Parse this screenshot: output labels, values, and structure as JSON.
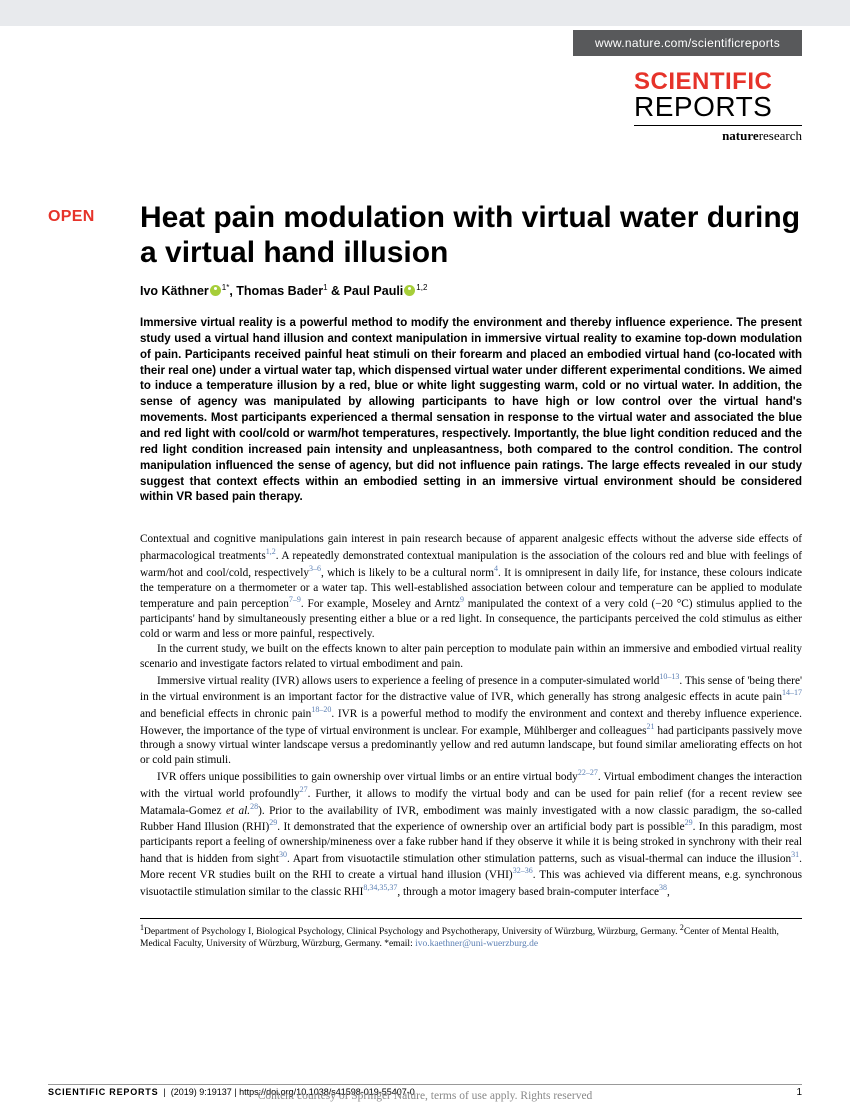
{
  "header": {
    "url": "www.nature.com/scientificreports",
    "logo_line1": "SCIENTIFIC",
    "logo_line2": "REPORTS",
    "logo_nature_bold": "nature",
    "logo_nature_rest": "research",
    "open_badge": "OPEN"
  },
  "article": {
    "title": "Heat pain modulation with virtual water during a virtual hand illusion",
    "authors_html": "Ivo Käthner|ORCID|<sup>1*</sup>, Thomas Bader<sup>1</sup> & Paul Pauli|ORCID|<sup>1,2</sup>",
    "abstract": "Immersive virtual reality is a powerful method to modify the environment and thereby influence experience. The present study used a virtual hand illusion and context manipulation in immersive virtual reality to examine top-down modulation of pain. Participants received painful heat stimuli on their forearm and placed an embodied virtual hand (co-located with their real one) under a virtual water tap, which dispensed virtual water under different experimental conditions. We aimed to induce a temperature illusion by a red, blue or white light suggesting warm, cold or no virtual water. In addition, the sense of agency was manipulated by allowing participants to have high or low control over the virtual hand's movements. Most participants experienced a thermal sensation in response to the virtual water and associated the blue and red light with cool/cold or warm/hot temperatures, respectively. Importantly, the blue light condition reduced and the red light condition increased pain intensity and unpleasantness, both compared to the control condition. The control manipulation influenced the sense of agency, but did not influence pain ratings. The large effects revealed in our study suggest that context effects within an embodied setting in an immersive virtual environment should be considered within VR based pain therapy."
  },
  "body": {
    "p1_a": "Contextual and cognitive manipulations gain interest in pain research because of apparent analgesic effects without the adverse side effects of pharmacological treatments",
    "p1_b": ". A repeatedly demonstrated contextual manipulation is the association of the colours red and blue with feelings of warm/hot and cool/cold, respectively",
    "p1_c": ", which is likely to be a cultural norm",
    "p1_d": ". It is omnipresent in daily life, for instance, these colours indicate the temperature on a thermometer or a water tap. This well-established association between colour and temperature can be applied to modulate temperature and pain perception",
    "p1_e": ". For example, Moseley and Arntz",
    "p1_f": " manipulated the context of a very cold (−20 °C) stimulus applied to the participants' hand by simultaneously presenting either a blue or a red light. In consequence, the participants perceived the cold stimulus as either cold or warm and less or more painful, respectively.",
    "p2": "In the current study, we built on the effects known to alter pain perception to modulate pain within an immersive and embodied virtual reality scenario and investigate factors related to virtual embodiment and pain.",
    "p3_a": "Immersive virtual reality (IVR) allows users to experience a feeling of presence in a computer-simulated world",
    "p3_b": ". This sense of 'being there' in the virtual environment is an important factor for the distractive value of IVR, which generally has strong analgesic effects in acute pain",
    "p3_c": " and beneficial effects in chronic pain",
    "p3_d": ". IVR is a powerful method to modify the environment and context and thereby influence experience. However, the importance of the type of virtual environment is unclear. For example, Mühlberger and colleagues",
    "p3_e": " had participants passively move through a snowy virtual winter landscape versus a predominantly yellow and red autumn landscape, but found similar ameliorating effects on hot or cold pain stimuli.",
    "p4_a": "IVR offers unique possibilities to gain ownership over virtual limbs or an entire virtual body",
    "p4_b": ". Virtual embodiment changes the interaction with the virtual world profoundly",
    "p4_c": ". Further, it allows to modify the virtual body and can be used for pain relief (for a recent review see Matamala-Gomez ",
    "p4_c2": "et al.",
    "p4_d": "). Prior to the availability of IVR, embodiment was mainly investigated with a now classic paradigm, the so-called Rubber Hand Illusion (RHI)",
    "p4_e": ". It demonstrated that the experience of ownership over an artificial body part is possible",
    "p4_f": ". In this paradigm, most participants report a feeling of ownership/mineness over a fake rubber hand if they observe it while it is being stroked in synchrony with their real hand that is hidden from sight",
    "p4_g": ". Apart from visuotactile stimulation other stimulation patterns, such as visual-thermal can induce the illusion",
    "p4_h": ". More recent VR studies built on the RHI to create a virtual hand illusion (VHI)",
    "p4_i": ". This was achieved via different means, e.g. synchronous visuotactile stimulation similar to the classic RHI",
    "p4_j": ", through a motor imagery based brain-computer interface",
    "p4_k": ","
  },
  "refs": {
    "r1": "1,2",
    "r2": "3–6",
    "r3": "4",
    "r4": "7–9",
    "r5": "9",
    "r6": "10–13",
    "r7": "14–17",
    "r8": "18–20",
    "r9": "21",
    "r10": "22–27",
    "r11": "27",
    "r12": "28",
    "r13": "29",
    "r14": "29",
    "r15": "30",
    "r16": "31",
    "r17": "32–36",
    "r18": "8,34,35,37",
    "r19": "38"
  },
  "affiliations": {
    "text_a": "Department of Psychology I, Biological Psychology, Clinical Psychology and Psychotherapy, University of Würzburg, Würzburg, Germany. ",
    "text_b": "Center of Mental Health, Medical Faculty, University of Würzburg, Würzburg, Germany. *email: ",
    "sup1": "1",
    "sup2": "2",
    "email": "ivo.kaethner@uni-wuerzburg.de"
  },
  "footer": {
    "journal": "SCIENTIFIC REPORTS",
    "citation": "(2019) 9:19137 | https://doi.org/10.1038/s41598-019-55407-0",
    "page": "1",
    "watermark": "Content courtesy of Springer Nature, terms of use apply. Rights reserved"
  },
  "colors": {
    "brand_red": "#e6332a",
    "link_blue": "#5b7fb3",
    "url_bar_bg": "#58595b",
    "orcid_green": "#a6ce39"
  }
}
